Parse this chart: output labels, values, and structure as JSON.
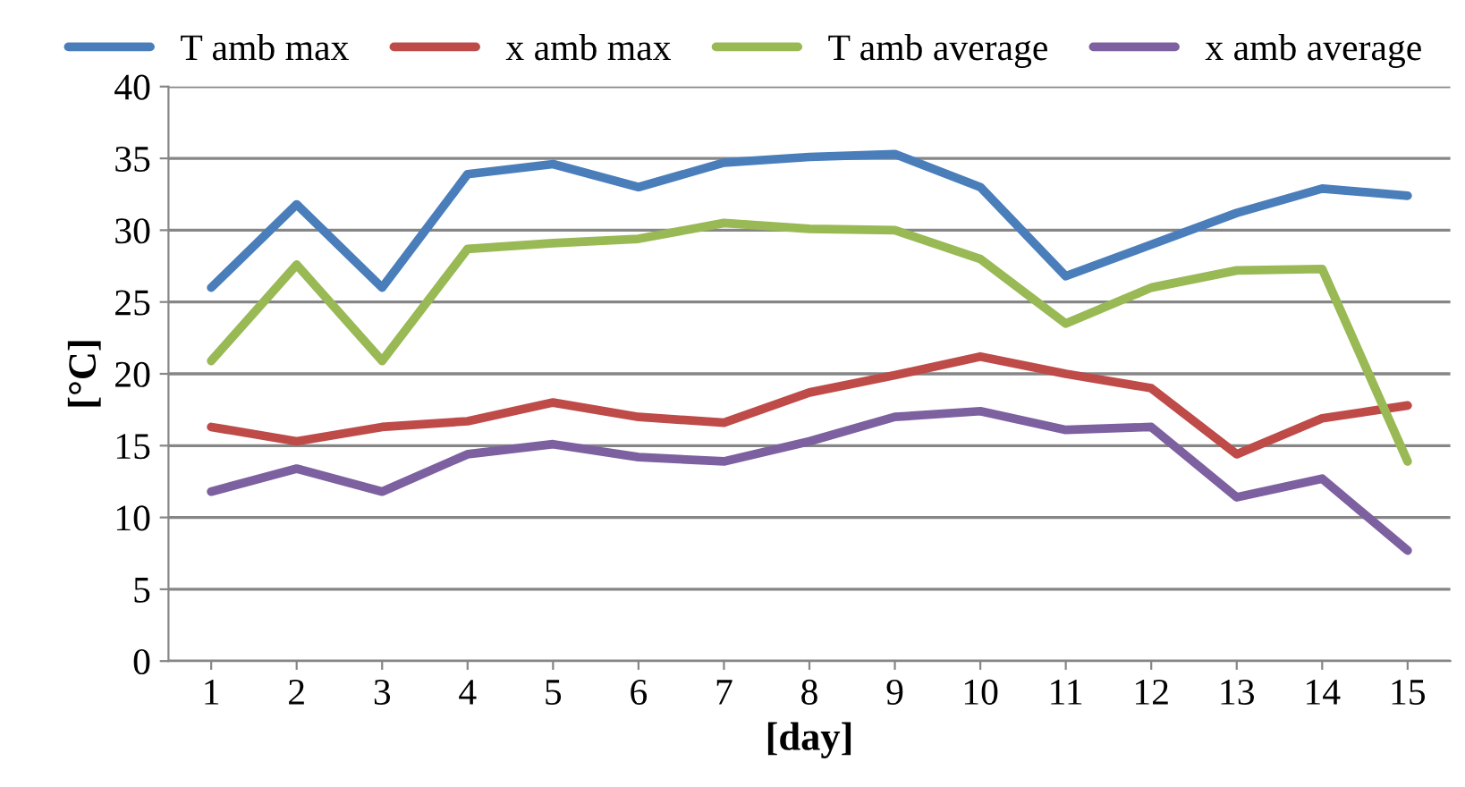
{
  "chart_data": {
    "type": "line",
    "xlabel": "[day]",
    "ylabel": "[°C]",
    "categories": [
      "1",
      "2",
      "3",
      "4",
      "5",
      "6",
      "7",
      "8",
      "9",
      "10",
      "11",
      "12",
      "13",
      "14",
      "15"
    ],
    "series": [
      {
        "name": "T amb max",
        "color": "#4a7ebb",
        "values": [
          26,
          31.8,
          26,
          33.9,
          34.6,
          33,
          34.7,
          35.1,
          35.3,
          33,
          26.8,
          29,
          31.2,
          32.9,
          32.4
        ]
      },
      {
        "name": "x amb max",
        "color": "#be4b48",
        "values": [
          16.3,
          15.3,
          16.3,
          16.7,
          18,
          17,
          16.6,
          18.7,
          19.9,
          21.2,
          20,
          19,
          14.4,
          16.9,
          17.8
        ]
      },
      {
        "name": "T amb average",
        "color": "#98b954",
        "values": [
          20.9,
          27.6,
          20.9,
          28.7,
          29.1,
          29.4,
          30.5,
          30.1,
          30,
          28,
          23.5,
          26,
          27.2,
          27.3,
          13.9
        ]
      },
      {
        "name": "x amb average",
        "color": "#7d60a0",
        "values": [
          11.8,
          13.4,
          11.8,
          14.4,
          15.1,
          14.2,
          13.9,
          15.3,
          17,
          17.4,
          16.1,
          16.3,
          11.4,
          12.7,
          7.7
        ]
      }
    ],
    "ylim": [
      0,
      40
    ],
    "yticks": [
      0,
      5,
      10,
      15,
      20,
      25,
      30,
      35,
      40
    ],
    "grid": "y",
    "legend": "top",
    "marker": "none",
    "line_style": "solid"
  }
}
